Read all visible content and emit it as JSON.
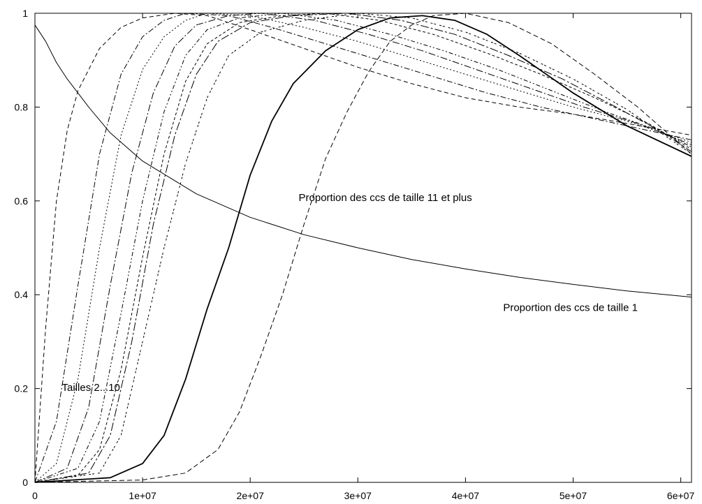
{
  "chart_data": {
    "type": "line",
    "title": "",
    "xlabel": "",
    "ylabel": "",
    "xlim": [
      0,
      61000000
    ],
    "ylim": [
      0,
      1
    ],
    "grid": false,
    "legend": "none",
    "x_ticks": [
      {
        "value": 0,
        "label": "0"
      },
      {
        "value": 10000000,
        "label": "1e+07"
      },
      {
        "value": 20000000,
        "label": "2e+07"
      },
      {
        "value": 30000000,
        "label": "3e+07"
      },
      {
        "value": 40000000,
        "label": "4e+07"
      },
      {
        "value": 50000000,
        "label": "5e+07"
      },
      {
        "value": 60000000,
        "label": "6e+07"
      }
    ],
    "y_ticks": [
      {
        "value": 0,
        "label": "0"
      },
      {
        "value": 0.2,
        "label": "0.2"
      },
      {
        "value": 0.4,
        "label": "0.4"
      },
      {
        "value": 0.6,
        "label": "0.6"
      },
      {
        "value": 0.8,
        "label": "0.8"
      },
      {
        "value": 1,
        "label": "1"
      }
    ],
    "annotations": [
      {
        "text": "Proportion des ccs de taille 11 et plus",
        "x": 24500000,
        "y": 0.6
      },
      {
        "text": "Proportion des ccs de taille 1",
        "x": 43500000,
        "y": 0.365
      },
      {
        "text": "Tailles 2...10",
        "x": 2500000,
        "y": 0.195
      }
    ],
    "series": [
      {
        "dash": "none",
        "points": [
          [
            0,
            0.975
          ],
          [
            1000000,
            0.94
          ],
          [
            2000000,
            0.895
          ],
          [
            3000000,
            0.86
          ],
          [
            4000000,
            0.83
          ],
          [
            5000000,
            0.8
          ],
          [
            7000000,
            0.745
          ],
          [
            10000000,
            0.685
          ],
          [
            15000000,
            0.615
          ],
          [
            20000000,
            0.565
          ],
          [
            25000000,
            0.528
          ],
          [
            30000000,
            0.5
          ],
          [
            35000000,
            0.475
          ],
          [
            40000000,
            0.455
          ],
          [
            45000000,
            0.437
          ],
          [
            50000000,
            0.422
          ],
          [
            55000000,
            0.408
          ],
          [
            61000000,
            0.395
          ]
        ]
      },
      {
        "dash": "6,4",
        "points": [
          [
            0,
            0
          ],
          [
            1000000,
            0.33
          ],
          [
            2000000,
            0.6
          ],
          [
            3000000,
            0.75
          ],
          [
            4000000,
            0.835
          ],
          [
            6000000,
            0.925
          ],
          [
            8000000,
            0.97
          ],
          [
            10000000,
            0.99
          ],
          [
            13000000,
            1
          ],
          [
            16000000,
            0.995
          ],
          [
            20000000,
            0.965
          ],
          [
            25000000,
            0.925
          ],
          [
            30000000,
            0.885
          ],
          [
            35000000,
            0.85
          ],
          [
            40000000,
            0.82
          ],
          [
            45000000,
            0.8
          ],
          [
            50000000,
            0.785
          ],
          [
            55000000,
            0.765
          ],
          [
            61000000,
            0.74
          ]
        ]
      },
      {
        "dash": "8,3,2,3",
        "points": [
          [
            0,
            0
          ],
          [
            2000000,
            0.13
          ],
          [
            4000000,
            0.42
          ],
          [
            6000000,
            0.7
          ],
          [
            8000000,
            0.87
          ],
          [
            10000000,
            0.95
          ],
          [
            12000000,
            0.985
          ],
          [
            14000000,
            1
          ],
          [
            18000000,
            0.995
          ],
          [
            22000000,
            0.97
          ],
          [
            27000000,
            0.935
          ],
          [
            32000000,
            0.9
          ],
          [
            37000000,
            0.865
          ],
          [
            42000000,
            0.83
          ],
          [
            47000000,
            0.8
          ],
          [
            52000000,
            0.775
          ],
          [
            57000000,
            0.75
          ],
          [
            61000000,
            0.73
          ]
        ]
      },
      {
        "dash": "2,3",
        "points": [
          [
            0,
            0
          ],
          [
            2000000,
            0.04
          ],
          [
            4000000,
            0.22
          ],
          [
            6000000,
            0.5
          ],
          [
            8000000,
            0.74
          ],
          [
            10000000,
            0.88
          ],
          [
            12000000,
            0.95
          ],
          [
            14000000,
            0.985
          ],
          [
            16000000,
            1
          ],
          [
            20000000,
            0.995
          ],
          [
            25000000,
            0.97
          ],
          [
            30000000,
            0.94
          ],
          [
            35000000,
            0.905
          ],
          [
            40000000,
            0.87
          ],
          [
            45000000,
            0.835
          ],
          [
            50000000,
            0.8
          ],
          [
            55000000,
            0.77
          ],
          [
            61000000,
            0.725
          ]
        ]
      },
      {
        "dash": "10,3,2,3",
        "points": [
          [
            0,
            0
          ],
          [
            3000000,
            0.03
          ],
          [
            5000000,
            0.16
          ],
          [
            7000000,
            0.42
          ],
          [
            9000000,
            0.66
          ],
          [
            11000000,
            0.83
          ],
          [
            13000000,
            0.93
          ],
          [
            15000000,
            0.975
          ],
          [
            18000000,
            0.995
          ],
          [
            21000000,
            1
          ],
          [
            26000000,
            0.985
          ],
          [
            31000000,
            0.955
          ],
          [
            36000000,
            0.92
          ],
          [
            41000000,
            0.88
          ],
          [
            46000000,
            0.84
          ],
          [
            51000000,
            0.8
          ],
          [
            56000000,
            0.765
          ],
          [
            61000000,
            0.72
          ]
        ]
      },
      {
        "dash": "6,3,2,3,2,3",
        "points": [
          [
            0,
            0
          ],
          [
            4000000,
            0.03
          ],
          [
            6000000,
            0.13
          ],
          [
            8000000,
            0.36
          ],
          [
            10000000,
            0.6
          ],
          [
            12000000,
            0.79
          ],
          [
            14000000,
            0.91
          ],
          [
            16000000,
            0.965
          ],
          [
            19000000,
            0.99
          ],
          [
            23000000,
            1
          ],
          [
            28000000,
            0.985
          ],
          [
            33000000,
            0.955
          ],
          [
            38000000,
            0.92
          ],
          [
            43000000,
            0.88
          ],
          [
            48000000,
            0.835
          ],
          [
            53000000,
            0.79
          ],
          [
            58000000,
            0.75
          ],
          [
            61000000,
            0.715
          ]
        ]
      },
      {
        "dash": "4,3",
        "points": [
          [
            0,
            0
          ],
          [
            4000000,
            0.015
          ],
          [
            6000000,
            0.07
          ],
          [
            8000000,
            0.24
          ],
          [
            10000000,
            0.48
          ],
          [
            12000000,
            0.7
          ],
          [
            14000000,
            0.855
          ],
          [
            16000000,
            0.935
          ],
          [
            19000000,
            0.98
          ],
          [
            23000000,
            0.995
          ],
          [
            27000000,
            1
          ],
          [
            32000000,
            0.985
          ],
          [
            37000000,
            0.955
          ],
          [
            42000000,
            0.915
          ],
          [
            47000000,
            0.87
          ],
          [
            52000000,
            0.82
          ],
          [
            57000000,
            0.765
          ],
          [
            61000000,
            0.71
          ]
        ]
      },
      {
        "dash": "12,3,3,3",
        "points": [
          [
            0,
            0
          ],
          [
            5000000,
            0.02
          ],
          [
            7000000,
            0.1
          ],
          [
            9000000,
            0.3
          ],
          [
            11000000,
            0.55
          ],
          [
            13000000,
            0.74
          ],
          [
            15000000,
            0.87
          ],
          [
            17000000,
            0.94
          ],
          [
            20000000,
            0.98
          ],
          [
            24000000,
            0.995
          ],
          [
            29000000,
            1
          ],
          [
            34000000,
            0.985
          ],
          [
            39000000,
            0.955
          ],
          [
            44000000,
            0.91
          ],
          [
            49000000,
            0.86
          ],
          [
            54000000,
            0.8
          ],
          [
            58000000,
            0.75
          ],
          [
            61000000,
            0.705
          ]
        ]
      },
      {
        "dash": "3,2,3,5",
        "points": [
          [
            0,
            0
          ],
          [
            6000000,
            0.02
          ],
          [
            8000000,
            0.1
          ],
          [
            10000000,
            0.3
          ],
          [
            12000000,
            0.5
          ],
          [
            14000000,
            0.68
          ],
          [
            16000000,
            0.82
          ],
          [
            18000000,
            0.91
          ],
          [
            21000000,
            0.96
          ],
          [
            25000000,
            0.985
          ],
          [
            30000000,
            1
          ],
          [
            35000000,
            0.99
          ],
          [
            40000000,
            0.96
          ],
          [
            45000000,
            0.915
          ],
          [
            50000000,
            0.86
          ],
          [
            55000000,
            0.795
          ],
          [
            61000000,
            0.7
          ]
        ]
      },
      {
        "dash": "none",
        "width": 1.8,
        "points": [
          [
            0,
            0
          ],
          [
            7000000,
            0.01
          ],
          [
            10000000,
            0.04
          ],
          [
            12000000,
            0.1
          ],
          [
            14000000,
            0.22
          ],
          [
            16000000,
            0.37
          ],
          [
            18000000,
            0.5
          ],
          [
            20000000,
            0.655
          ],
          [
            22000000,
            0.77
          ],
          [
            24000000,
            0.85
          ],
          [
            27000000,
            0.92
          ],
          [
            30000000,
            0.965
          ],
          [
            33000000,
            0.99
          ],
          [
            36000000,
            0.995
          ],
          [
            39000000,
            0.985
          ],
          [
            42000000,
            0.955
          ],
          [
            45000000,
            0.91
          ],
          [
            50000000,
            0.83
          ],
          [
            55000000,
            0.76
          ],
          [
            61000000,
            0.695
          ]
        ]
      },
      {
        "dash": "7,4",
        "points": [
          [
            0,
            0
          ],
          [
            10000000,
            0.005
          ],
          [
            14000000,
            0.02
          ],
          [
            17000000,
            0.07
          ],
          [
            19000000,
            0.15
          ],
          [
            21000000,
            0.27
          ],
          [
            23000000,
            0.4
          ],
          [
            25000000,
            0.55
          ],
          [
            27000000,
            0.69
          ],
          [
            29000000,
            0.79
          ],
          [
            31000000,
            0.875
          ],
          [
            33000000,
            0.94
          ],
          [
            35000000,
            0.975
          ],
          [
            37000000,
            0.995
          ],
          [
            40000000,
            1
          ],
          [
            44000000,
            0.98
          ],
          [
            48000000,
            0.935
          ],
          [
            52000000,
            0.87
          ],
          [
            56000000,
            0.8
          ],
          [
            61000000,
            0.7
          ]
        ]
      }
    ]
  }
}
